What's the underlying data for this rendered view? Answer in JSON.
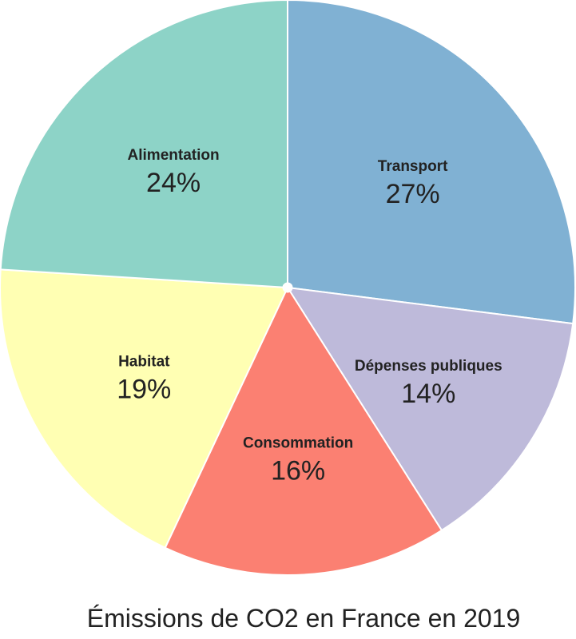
{
  "chart_data": {
    "type": "pie",
    "title": "Émissions de CO2 en France en 2019",
    "start_angle_deg": 0,
    "direction": "clockwise",
    "slices": [
      {
        "label": "Transport",
        "value": 27,
        "value_label": "27%",
        "color": "#80b1d3"
      },
      {
        "label": "Dépenses publiques",
        "value": 14,
        "value_label": "14%",
        "color": "#bebada"
      },
      {
        "label": "Consommation",
        "value": 16,
        "value_label": "16%",
        "color": "#fb8072"
      },
      {
        "label": "Habitat",
        "value": 19,
        "value_label": "19%",
        "color": "#ffffb3"
      },
      {
        "label": "Alimentation",
        "value": 24,
        "value_label": "24%",
        "color": "#8dd3c7"
      }
    ]
  }
}
